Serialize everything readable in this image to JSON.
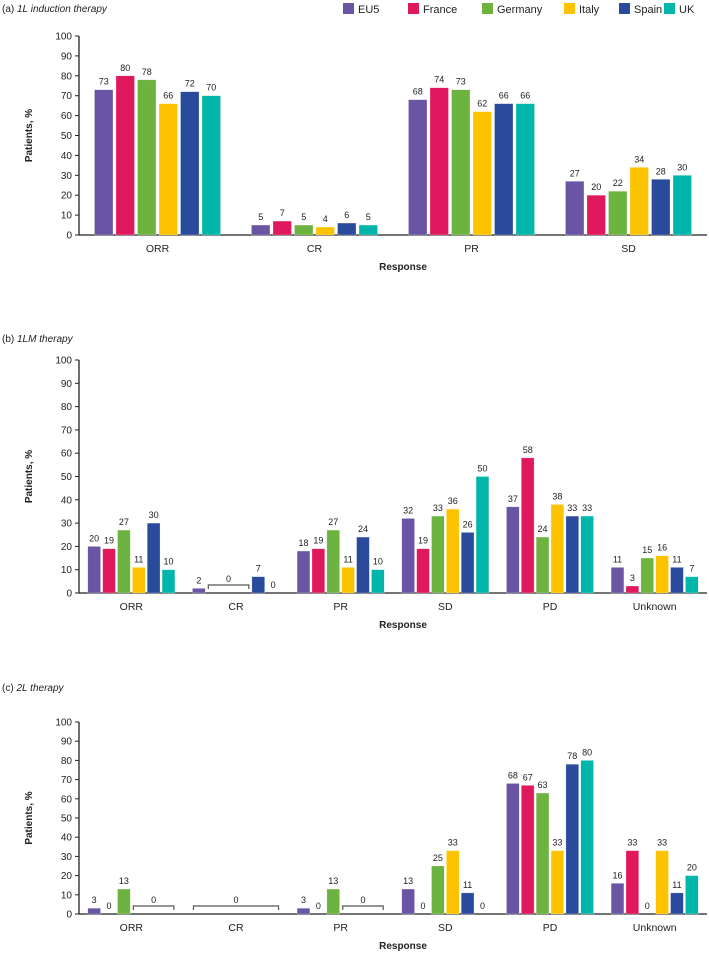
{
  "legend": [
    "EU5",
    "France",
    "Germany",
    "Italy",
    "Spain",
    "UK"
  ],
  "colors": {
    "EU5": "#6a55a5",
    "France": "#e0195e",
    "Germany": "#6db33f",
    "Italy": "#fdc300",
    "Spain": "#2a4b9b",
    "UK": "#00b5a9"
  },
  "chart_data": [
    {
      "type": "bar",
      "panel_prefix": "(a)",
      "title": "1L induction therapy",
      "xlabel": "Response",
      "ylabel": "Patients, %",
      "ylim": [
        0,
        100
      ],
      "yticks": [
        0,
        10,
        20,
        30,
        40,
        50,
        60,
        70,
        80,
        90,
        100
      ],
      "categories": [
        "ORR",
        "CR",
        "PR",
        "SD"
      ],
      "series": [
        {
          "name": "EU5",
          "values": [
            73,
            5,
            68,
            27
          ]
        },
        {
          "name": "France",
          "values": [
            80,
            7,
            74,
            20
          ]
        },
        {
          "name": "Germany",
          "values": [
            78,
            5,
            73,
            22
          ]
        },
        {
          "name": "Italy",
          "values": [
            66,
            4,
            62,
            34
          ]
        },
        {
          "name": "Spain",
          "values": [
            72,
            6,
            66,
            28
          ]
        },
        {
          "name": "UK",
          "values": [
            70,
            5,
            66,
            30
          ]
        }
      ],
      "zero_brackets": []
    },
    {
      "type": "bar",
      "panel_prefix": "(b)",
      "title": "1LM therapy",
      "xlabel": "Response",
      "ylabel": "Patients, %",
      "ylim": [
        0,
        100
      ],
      "yticks": [
        0,
        10,
        20,
        30,
        40,
        50,
        60,
        70,
        80,
        90,
        100
      ],
      "categories": [
        "ORR",
        "CR",
        "PR",
        "SD",
        "PD",
        "Unknown"
      ],
      "series": [
        {
          "name": "EU5",
          "values": [
            20,
            2,
            18,
            32,
            37,
            11
          ]
        },
        {
          "name": "France",
          "values": [
            19,
            0,
            19,
            19,
            58,
            3
          ]
        },
        {
          "name": "Germany",
          "values": [
            27,
            0,
            27,
            33,
            24,
            15
          ]
        },
        {
          "name": "Italy",
          "values": [
            11,
            0,
            11,
            36,
            38,
            16
          ]
        },
        {
          "name": "Spain",
          "values": [
            30,
            7,
            24,
            26,
            33,
            11
          ]
        },
        {
          "name": "UK",
          "values": [
            10,
            0,
            10,
            50,
            33,
            7
          ]
        }
      ],
      "zero_brackets": [
        {
          "category": "CR",
          "from": "France",
          "to": "Italy",
          "label": "0"
        }
      ]
    },
    {
      "type": "bar",
      "panel_prefix": "(c)",
      "title": "2L therapy",
      "xlabel": "Response",
      "ylabel": "Patients, %",
      "ylim": [
        0,
        100
      ],
      "yticks": [
        0,
        10,
        20,
        30,
        40,
        50,
        60,
        70,
        80,
        90,
        100
      ],
      "categories": [
        "ORR",
        "CR",
        "PR",
        "SD",
        "PD",
        "Unknown"
      ],
      "series": [
        {
          "name": "EU5",
          "values": [
            3,
            0,
            3,
            13,
            68,
            16
          ]
        },
        {
          "name": "France",
          "values": [
            0,
            0,
            0,
            0,
            67,
            33
          ]
        },
        {
          "name": "Germany",
          "values": [
            13,
            0,
            13,
            25,
            63,
            0
          ]
        },
        {
          "name": "Italy",
          "values": [
            0,
            0,
            0,
            33,
            33,
            33
          ]
        },
        {
          "name": "Spain",
          "values": [
            0,
            0,
            0,
            11,
            78,
            11
          ]
        },
        {
          "name": "UK",
          "values": [
            0,
            0,
            0,
            0,
            80,
            20
          ]
        }
      ],
      "zero_brackets": [
        {
          "category": "ORR",
          "from": "Italy",
          "to": "UK",
          "label": "0"
        },
        {
          "category": "CR",
          "from": "EU5",
          "to": "UK",
          "label": "0"
        },
        {
          "category": "PR",
          "from": "Italy",
          "to": "UK",
          "label": "0"
        }
      ]
    }
  ]
}
